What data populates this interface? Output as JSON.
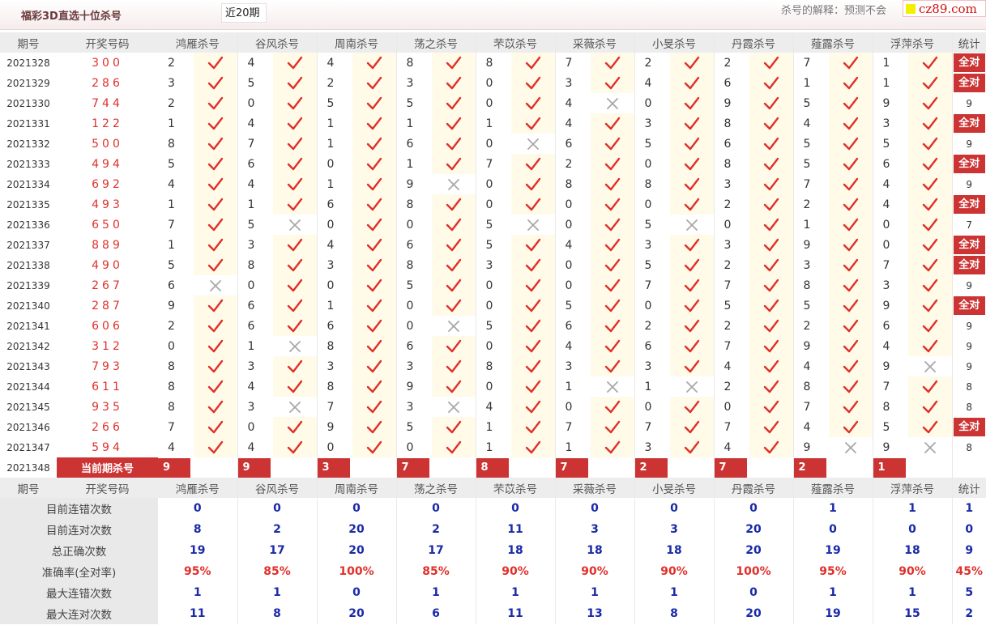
{
  "header": {
    "title": "福彩3D直选十位杀号",
    "period_select": "近20期",
    "explain": "杀号的解释：预测不会",
    "logo_text": "cz89.com"
  },
  "columns": {
    "issue": "期号",
    "draw": "开奖号码",
    "experts": [
      "鸿雁杀号",
      "谷风杀号",
      "周南杀号",
      "荡之杀号",
      "芣苡杀号",
      "采薇杀号",
      "小旻杀号",
      "丹霞杀号",
      "薤露杀号",
      "浮萍杀号"
    ],
    "stat": "统计"
  },
  "all_correct_label": "全对",
  "rows": [
    {
      "issue": "2021328",
      "draw": "300",
      "kills": [
        2,
        4,
        4,
        8,
        8,
        7,
        2,
        2,
        7,
        1
      ],
      "hits": [
        1,
        1,
        1,
        1,
        1,
        1,
        1,
        1,
        1,
        1
      ],
      "stat": "全对"
    },
    {
      "issue": "2021329",
      "draw": "286",
      "kills": [
        3,
        5,
        2,
        3,
        0,
        3,
        4,
        6,
        1,
        1
      ],
      "hits": [
        1,
        1,
        1,
        1,
        1,
        1,
        1,
        1,
        1,
        1
      ],
      "stat": "全对"
    },
    {
      "issue": "2021330",
      "draw": "744",
      "kills": [
        2,
        0,
        5,
        5,
        0,
        4,
        0,
        9,
        5,
        9
      ],
      "hits": [
        1,
        1,
        1,
        1,
        1,
        0,
        1,
        1,
        1,
        1
      ],
      "stat": "9"
    },
    {
      "issue": "2021331",
      "draw": "122",
      "kills": [
        1,
        4,
        1,
        1,
        1,
        4,
        3,
        8,
        4,
        3
      ],
      "hits": [
        1,
        1,
        1,
        1,
        1,
        1,
        1,
        1,
        1,
        1
      ],
      "stat": "全对"
    },
    {
      "issue": "2021332",
      "draw": "500",
      "kills": [
        8,
        7,
        1,
        6,
        0,
        6,
        5,
        6,
        5,
        5
      ],
      "hits": [
        1,
        1,
        1,
        1,
        0,
        1,
        1,
        1,
        1,
        1
      ],
      "stat": "9"
    },
    {
      "issue": "2021333",
      "draw": "494",
      "kills": [
        5,
        6,
        0,
        1,
        7,
        2,
        0,
        8,
        5,
        6
      ],
      "hits": [
        1,
        1,
        1,
        1,
        1,
        1,
        1,
        1,
        1,
        1
      ],
      "stat": "全对"
    },
    {
      "issue": "2021334",
      "draw": "692",
      "kills": [
        4,
        4,
        1,
        9,
        0,
        8,
        8,
        3,
        7,
        4
      ],
      "hits": [
        1,
        1,
        1,
        0,
        1,
        1,
        1,
        1,
        1,
        1
      ],
      "stat": "9"
    },
    {
      "issue": "2021335",
      "draw": "493",
      "kills": [
        1,
        1,
        6,
        8,
        0,
        0,
        0,
        2,
        2,
        4
      ],
      "hits": [
        1,
        1,
        1,
        1,
        1,
        1,
        1,
        1,
        1,
        1
      ],
      "stat": "全对"
    },
    {
      "issue": "2021336",
      "draw": "650",
      "kills": [
        7,
        5,
        0,
        0,
        5,
        0,
        5,
        0,
        1,
        0
      ],
      "hits": [
        1,
        0,
        1,
        1,
        0,
        1,
        0,
        1,
        1,
        1
      ],
      "stat": "7"
    },
    {
      "issue": "2021337",
      "draw": "889",
      "kills": [
        1,
        3,
        4,
        6,
        5,
        4,
        3,
        3,
        9,
        0
      ],
      "hits": [
        1,
        1,
        1,
        1,
        1,
        1,
        1,
        1,
        1,
        1
      ],
      "stat": "全对"
    },
    {
      "issue": "2021338",
      "draw": "490",
      "kills": [
        5,
        8,
        3,
        8,
        3,
        0,
        5,
        2,
        3,
        7
      ],
      "hits": [
        1,
        1,
        1,
        1,
        1,
        1,
        1,
        1,
        1,
        1
      ],
      "stat": "全对"
    },
    {
      "issue": "2021339",
      "draw": "267",
      "kills": [
        6,
        0,
        0,
        5,
        0,
        0,
        7,
        7,
        8,
        3
      ],
      "hits": [
        0,
        1,
        1,
        1,
        1,
        1,
        1,
        1,
        1,
        1
      ],
      "stat": "9"
    },
    {
      "issue": "2021340",
      "draw": "287",
      "kills": [
        9,
        6,
        1,
        0,
        0,
        5,
        0,
        5,
        5,
        9
      ],
      "hits": [
        1,
        1,
        1,
        1,
        1,
        1,
        1,
        1,
        1,
        1
      ],
      "stat": "全对"
    },
    {
      "issue": "2021341",
      "draw": "606",
      "kills": [
        2,
        6,
        6,
        0,
        5,
        6,
        2,
        2,
        2,
        6
      ],
      "hits": [
        1,
        1,
        1,
        0,
        1,
        1,
        1,
        1,
        1,
        1
      ],
      "stat": "9"
    },
    {
      "issue": "2021342",
      "draw": "312",
      "kills": [
        0,
        1,
        8,
        6,
        0,
        4,
        6,
        7,
        9,
        4
      ],
      "hits": [
        1,
        0,
        1,
        1,
        1,
        1,
        1,
        1,
        1,
        1
      ],
      "stat": "9"
    },
    {
      "issue": "2021343",
      "draw": "793",
      "kills": [
        8,
        3,
        3,
        3,
        8,
        3,
        3,
        4,
        4,
        9
      ],
      "hits": [
        1,
        1,
        1,
        1,
        1,
        1,
        1,
        1,
        1,
        0
      ],
      "stat": "9"
    },
    {
      "issue": "2021344",
      "draw": "611",
      "kills": [
        8,
        4,
        8,
        9,
        0,
        1,
        1,
        2,
        8,
        7
      ],
      "hits": [
        1,
        1,
        1,
        1,
        1,
        0,
        0,
        1,
        1,
        1
      ],
      "stat": "8"
    },
    {
      "issue": "2021345",
      "draw": "935",
      "kills": [
        8,
        3,
        7,
        3,
        4,
        0,
        0,
        0,
        7,
        8
      ],
      "hits": [
        1,
        0,
        1,
        0,
        1,
        1,
        1,
        1,
        1,
        1
      ],
      "stat": "8"
    },
    {
      "issue": "2021346",
      "draw": "266",
      "kills": [
        7,
        0,
        9,
        5,
        1,
        7,
        7,
        7,
        4,
        5
      ],
      "hits": [
        1,
        1,
        1,
        1,
        1,
        1,
        1,
        1,
        1,
        1
      ],
      "stat": "全对"
    },
    {
      "issue": "2021347",
      "draw": "594",
      "kills": [
        4,
        4,
        0,
        0,
        1,
        1,
        3,
        4,
        9,
        9
      ],
      "hits": [
        1,
        1,
        1,
        1,
        1,
        1,
        1,
        1,
        0,
        0
      ],
      "stat": "8"
    }
  ],
  "current": {
    "issue": "2021348",
    "label": "当前期杀号",
    "kills": [
      9,
      9,
      3,
      7,
      8,
      7,
      2,
      7,
      2,
      1
    ]
  },
  "summary": [
    {
      "label": "目前连错次数",
      "values": [
        "0",
        "0",
        "0",
        "0",
        "0",
        "0",
        "0",
        "0",
        "1",
        "1"
      ],
      "stat": "1",
      "pct": false
    },
    {
      "label": "目前连对次数",
      "values": [
        "8",
        "2",
        "20",
        "2",
        "11",
        "3",
        "3",
        "20",
        "0",
        "0"
      ],
      "stat": "0",
      "pct": false
    },
    {
      "label": "总正确次数",
      "values": [
        "19",
        "17",
        "20",
        "17",
        "18",
        "18",
        "18",
        "20",
        "19",
        "18"
      ],
      "stat": "9",
      "pct": false
    },
    {
      "label": "准确率(全对率)",
      "values": [
        "95%",
        "85%",
        "100%",
        "85%",
        "90%",
        "90%",
        "90%",
        "100%",
        "95%",
        "90%"
      ],
      "stat": "45%",
      "pct": true
    },
    {
      "label": "最大连错次数",
      "values": [
        "1",
        "1",
        "0",
        "1",
        "1",
        "1",
        "1",
        "0",
        "1",
        "1"
      ],
      "stat": "5",
      "pct": false
    },
    {
      "label": "最大连对次数",
      "values": [
        "11",
        "8",
        "20",
        "6",
        "11",
        "13",
        "8",
        "20",
        "19",
        "15"
      ],
      "stat": "2",
      "pct": false
    }
  ],
  "colors": {
    "accent": "#cc3333",
    "draw_red": "#e0302a",
    "stat_blue": "#1a2aa8",
    "tick_bg": "#fffbe8"
  }
}
